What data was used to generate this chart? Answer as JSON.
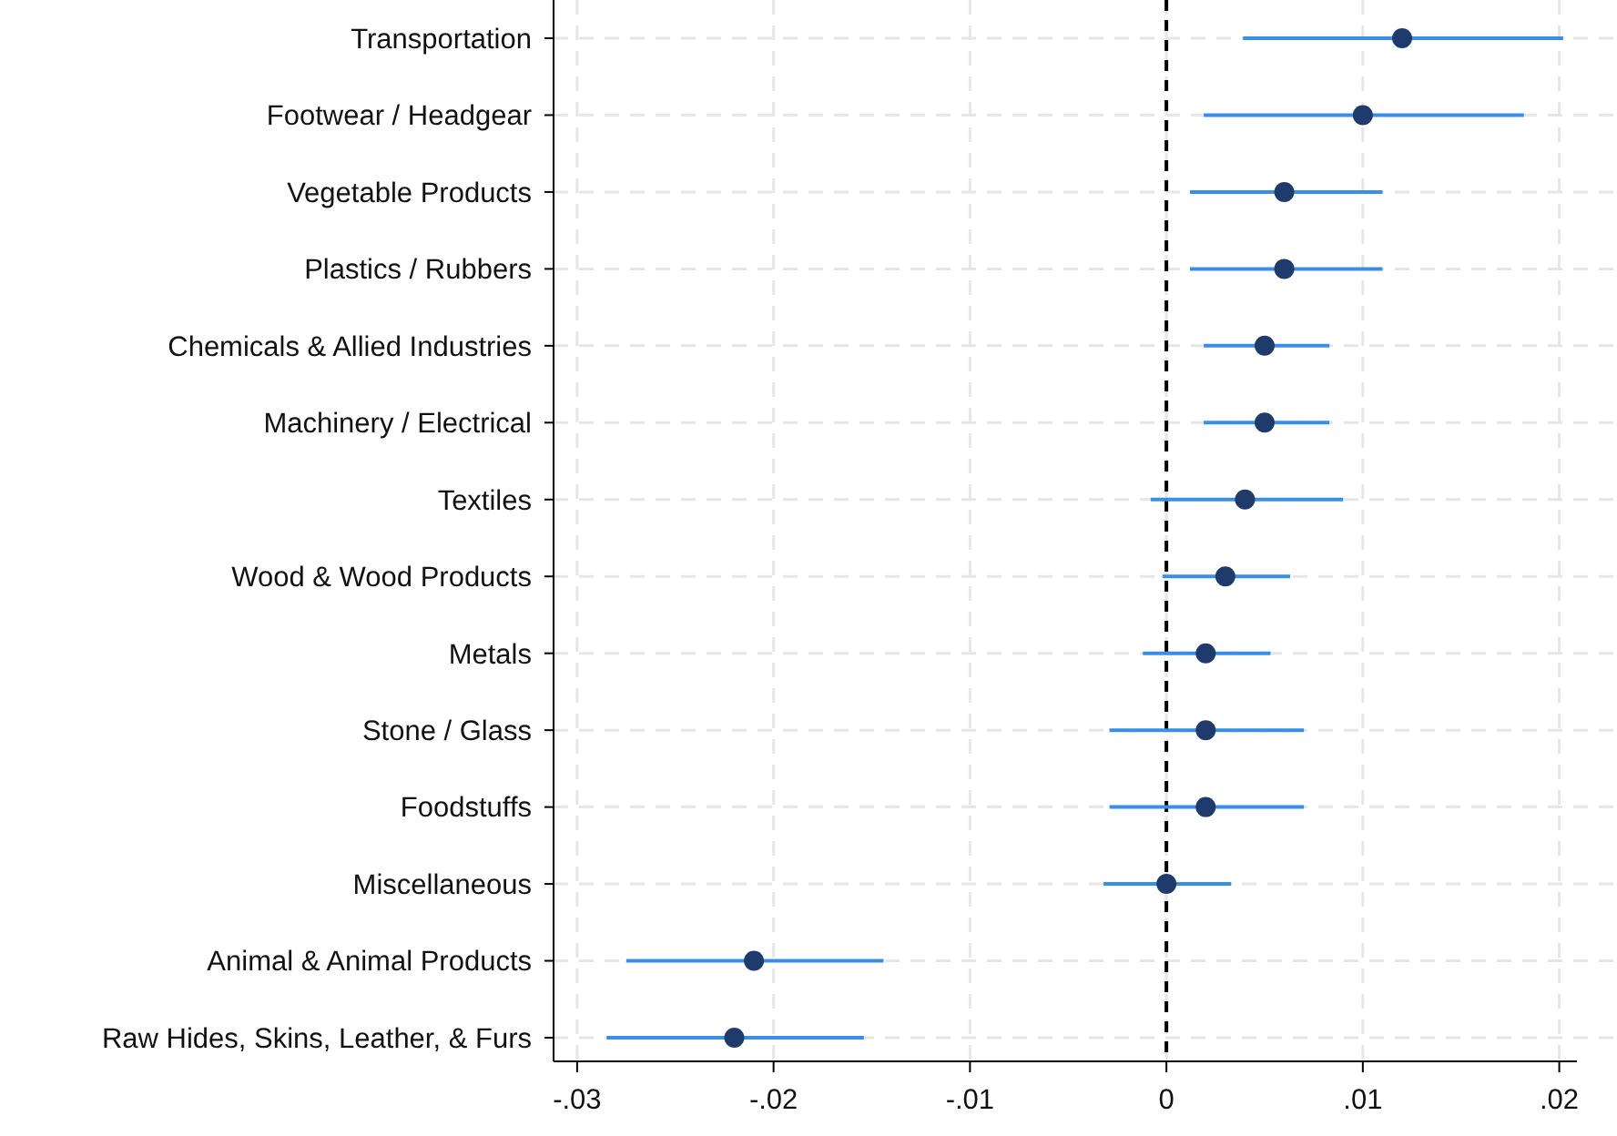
{
  "chart_data": {
    "type": "scatter",
    "orientation": "horizontal",
    "categories": [
      "Transportation",
      "Footwear / Headgear",
      "Vegetable Products",
      "Plastics / Rubbers",
      "Chemicals & Allied Industries",
      "Machinery / Electrical",
      "Textiles",
      "Wood & Wood Products",
      "Metals",
      "Stone / Glass",
      "Foodstuffs",
      "Miscellaneous",
      "Animal & Animal Products",
      "Raw Hides, Skins, Leather, & Furs"
    ],
    "series": [
      {
        "color": "#1f3b6b",
        "values": [
          0.012,
          0.01,
          0.006,
          0.006,
          0.005,
          0.005,
          0.004,
          0.003,
          0.002,
          0.002,
          0.002,
          0,
          -0.021,
          -0.022
        ],
        "errors": [
          [
            0.0039,
            0.0202
          ],
          [
            0.0019,
            0.0182
          ],
          [
            0.0012,
            0.011
          ],
          [
            0.0012,
            0.011
          ],
          [
            0.0019,
            0.0083
          ],
          [
            0.0019,
            0.0083
          ],
          [
            -0.0008,
            0.009
          ],
          [
            -0.0002,
            0.0063
          ],
          [
            -0.0012,
            0.0053
          ],
          [
            -0.0029,
            0.007
          ],
          [
            -0.0029,
            0.007
          ],
          [
            -0.0032,
            0.0033
          ],
          [
            -0.0275,
            -0.0144
          ],
          [
            -0.0285,
            -0.0154
          ]
        ]
      }
    ],
    "xlim": [
      -0.0312,
      0.0209
    ],
    "xticks": [
      {
        "value": -0.03,
        "label": "-.03"
      },
      {
        "value": -0.02,
        "label": "-.02"
      },
      {
        "value": -0.01,
        "label": "-.01"
      },
      0,
      {
        "value": 0.01,
        "label": ".01"
      },
      {
        "value": 0.02,
        "label": ".02"
      }
    ],
    "ref_lines": [
      {
        "axis": "x",
        "value": 0,
        "line_style": "dashed",
        "color": "#000000"
      }
    ],
    "grid": true,
    "marker": "circle"
  }
}
